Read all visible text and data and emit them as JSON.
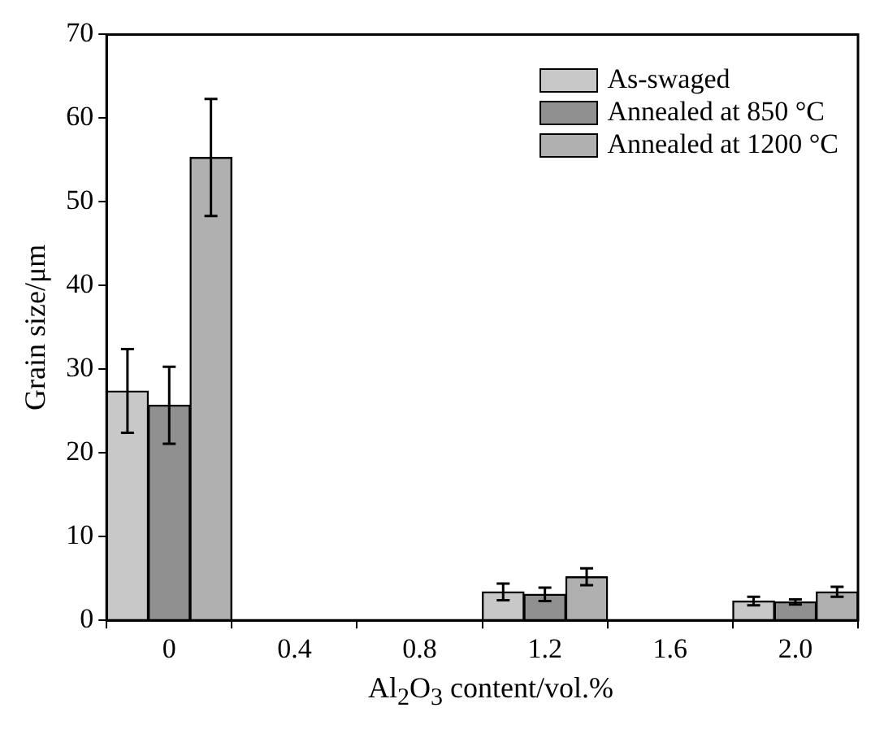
{
  "chart_data": {
    "type": "bar",
    "ylabel": "Grain size/μm",
    "xlabel": "Al$_{2}$O$_{3}$ content/vol.%",
    "categories": [
      "0",
      "0.4",
      "0.8",
      "1.2",
      "1.6",
      "2.0"
    ],
    "series": [
      {
        "name": "As-swaged",
        "color": "#c8c8c8",
        "values": [
          27.4,
          null,
          null,
          3.4,
          null,
          2.3
        ],
        "errors": [
          5,
          null,
          null,
          1,
          null,
          0.5
        ]
      },
      {
        "name": "Annealed at 850 °C",
        "color": "#909090",
        "values": [
          25.7,
          null,
          null,
          3.1,
          null,
          2.2
        ],
        "errors": [
          4.6,
          null,
          null,
          0.8,
          null,
          0.3
        ]
      },
      {
        "name": "Annealed at 1200 °C",
        "color": "#b0b0b0",
        "values": [
          55.3,
          null,
          null,
          5.2,
          null,
          3.4
        ],
        "errors": [
          7,
          null,
          null,
          1,
          null,
          0.6
        ]
      }
    ],
    "ylim": [
      0,
      70
    ],
    "yticks": [
      0,
      10,
      20,
      30,
      40,
      50,
      60,
      70
    ],
    "grid": false,
    "legend": "top right"
  }
}
